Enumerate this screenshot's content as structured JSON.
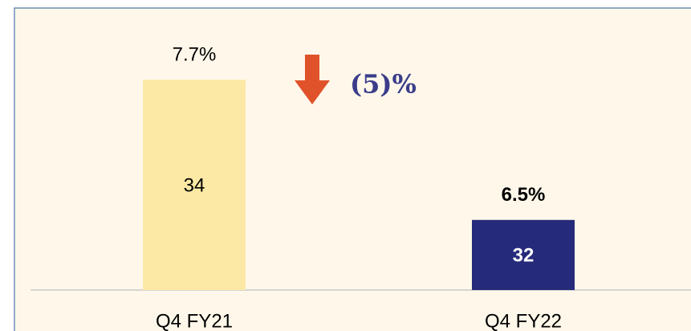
{
  "chart_data": {
    "type": "bar",
    "categories": [
      "Q4 FY21",
      "Q4 FY22"
    ],
    "values": [
      34,
      32
    ],
    "colors": [
      "#fce9a5",
      "#262a7a"
    ],
    "value_label_colors": [
      "#000000",
      "#ffffff"
    ],
    "bold_labels": [
      false,
      true
    ],
    "margin_values": [
      7.7,
      6.5
    ],
    "margin_labels": [
      "7.7%",
      "6.5%"
    ],
    "change_annotation": "(5)%",
    "ylim": [
      31,
      35
    ]
  }
}
